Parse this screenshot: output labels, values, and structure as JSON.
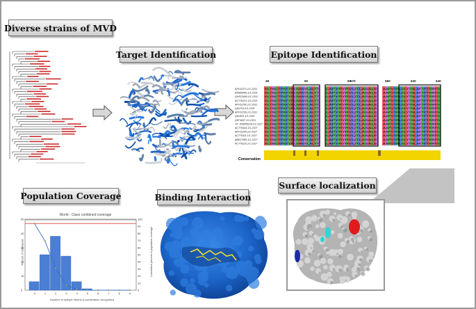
{
  "panels": {
    "strains_title": "Diverse strains of MVD",
    "target_title": "Target Identification",
    "epitope_title": "Epitope Identification",
    "coverage_title": "Population Coverage",
    "binding_title": "Binding Interaction",
    "surface_title": "Surface localization"
  },
  "alignment": {
    "position_labels": [
      "49",
      "50",
      "60",
      "570",
      "580",
      "630",
      "640",
      "650"
    ],
    "sequence_ids": [
      "APV11271.1/1-2331",
      "AAR85466.1/1-2331",
      "QHS23465.1/1-2331",
      "ACT79101.1/1-2331",
      "APV11260.1/1-2331",
      "Q6U703.1/1-2331",
      "APV11259.1/1-2331",
      "Q6U651.1/1-2331",
      "Q6T4957.1/1-2331",
      "YP_009055228.1/1-2327",
      "ACT79104.1/1-2327",
      "APV11266.1/1-2327",
      "ACT79111.1/1-2327",
      "ABE27095.1/1-2327",
      "ACT79115.1/1-2327"
    ],
    "block1_text": "KLYNCTPKFYRLSANYLALTT",
    "block2_text": "LAPYRYRVQTLASALE",
    "block3_text": "AAPVYRLDLYTNLAFTPTRRFS",
    "conservation_label": "Conservation"
  },
  "coverage_chart": {
    "title": "World - Class combined coverage",
    "ylabel_left": "Percent of individuals",
    "ylabel_right": "Cumulative percent of population coverage",
    "xlabel": "Number of epitope hits/HLA combination recognized"
  },
  "chart_data": {
    "type": "bar",
    "title": "World - Class combined coverage",
    "xlabel": "Number of epitope hits/HLA combination recognized",
    "ylabel": "Percent of individuals",
    "categories": [
      "0",
      "1",
      "2",
      "3",
      "4",
      "5",
      "6",
      "7",
      "8",
      "9"
    ],
    "values": [
      6,
      25,
      38,
      24,
      6,
      1,
      0,
      0,
      0,
      0
    ],
    "cumulative": [
      94,
      69,
      31,
      7,
      1,
      0,
      0,
      0,
      0,
      0
    ],
    "ylim": [
      0,
      50
    ],
    "ylim_right": [
      0,
      100
    ],
    "yticks_left": [
      "0",
      "10",
      "20",
      "30",
      "40",
      "50"
    ],
    "yticks_right": [
      "0",
      "10",
      "20",
      "30",
      "40",
      "50",
      "60",
      "70",
      "80",
      "90",
      "100"
    ],
    "bar_color": "#4a7fd4",
    "line_color": "#3a6fbf",
    "threshold_color": "#cc2222"
  },
  "colors": {
    "protein_blue": "#1c64c8",
    "highlight_red": "#e01b1b",
    "highlight_cyan": "#2fd4d4",
    "highlight_navy": "#1a2aa8",
    "conservation_yellow": "#f2d400"
  }
}
